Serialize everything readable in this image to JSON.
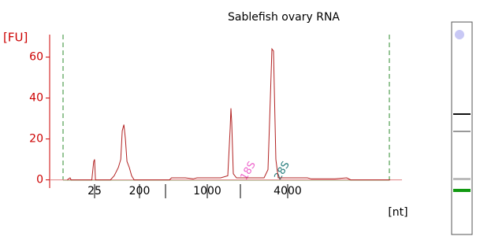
{
  "chart_data": {
    "type": "line",
    "title": "Sablefish ovary RNA",
    "ylabel": "[FU]",
    "xlabel": "[nt]",
    "color": "#b22222",
    "xscale": "ladder",
    "xlim": [
      3.1,
      21340
    ],
    "xticks": [
      25,
      200,
      {
        "value": 500,
        "label": null
      },
      1000,
      {
        "value": 2000,
        "label": null
      },
      4000
    ],
    "ylim": [
      -4,
      71
    ],
    "yticks": [
      0,
      20,
      40,
      60
    ],
    "x": [
      7,
      8,
      8.4,
      22,
      24,
      25,
      26,
      52,
      62,
      75,
      84,
      90,
      97,
      104,
      112,
      125,
      139,
      156,
      534,
      552,
      608,
      694,
      790,
      843,
      1324,
      1536,
      1614,
      1641,
      1667,
      1724,
      1841,
      2244,
      2829,
      2996,
      3102,
      3175,
      3249,
      3287,
      3364,
      3482,
      5337,
      5657,
      8000,
      9507,
      10072,
      17974
    ],
    "values": [
      0,
      1,
      0,
      0,
      9,
      10,
      0,
      0,
      2,
      6,
      10,
      24,
      27,
      20,
      9,
      6,
      2,
      0,
      0,
      1,
      1,
      1,
      0.5,
      1,
      1,
      2,
      25,
      35,
      28,
      3,
      1,
      1,
      1,
      5,
      40,
      64,
      63,
      45,
      10,
      1,
      1,
      0.5,
      0.5,
      1,
      0,
      0
    ],
    "annotations": [
      "18S",
      "28S"
    ]
  }
}
